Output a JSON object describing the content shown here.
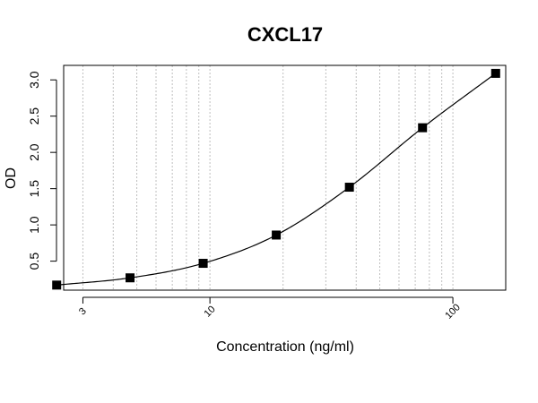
{
  "chart_data": {
    "type": "scatter",
    "title": "CXCL17",
    "xlabel": "Concentration (ng/ml)",
    "ylabel": "OD",
    "x_scale": "log",
    "xlim": [
      2.5,
      165
    ],
    "ylim": [
      0.1,
      3.2
    ],
    "x_tick_labels": [
      {
        "value": 3,
        "label": "3"
      },
      {
        "value": 10,
        "label": "10"
      },
      {
        "value": 100,
        "label": "100"
      }
    ],
    "y_tick_labels": [
      {
        "value": 0.5,
        "label": "0.5"
      },
      {
        "value": 1.0,
        "label": "1.0"
      },
      {
        "value": 1.5,
        "label": "1.5"
      },
      {
        "value": 2.0,
        "label": "2.0"
      },
      {
        "value": 2.5,
        "label": "2.5"
      },
      {
        "value": 3.0,
        "label": "3.0"
      }
    ],
    "grid": "vertical dotted at log decades",
    "points": {
      "x": [
        2.34,
        4.69,
        9.38,
        18.75,
        37.5,
        75,
        150
      ],
      "y": [
        0.17,
        0.27,
        0.47,
        0.86,
        1.52,
        2.34,
        3.09
      ]
    },
    "fit_curve": true,
    "marker": "filled-square",
    "colors": {
      "points": "#000000",
      "curve": "#000000",
      "grid": "#bfbfbf"
    }
  }
}
